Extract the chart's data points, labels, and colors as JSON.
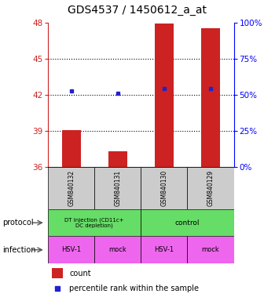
{
  "title": "GDS4537 / 1450612_a_at",
  "samples": [
    "GSM840132",
    "GSM840131",
    "GSM840130",
    "GSM840129"
  ],
  "count_values": [
    39.1,
    37.3,
    47.9,
    47.5
  ],
  "percentile_values": [
    42.3,
    42.1,
    42.5,
    42.5
  ],
  "ylim": [
    36,
    48
  ],
  "yticks_left": [
    36,
    39,
    42,
    45,
    48
  ],
  "yticks_right": [
    0,
    25,
    50,
    75,
    100
  ],
  "ytick_right_labels": [
    "0%",
    "25%",
    "50%",
    "75%",
    "100%"
  ],
  "bar_color": "#cc2222",
  "dot_color": "#2222cc",
  "protocol_labels": [
    "DT injection (CD11c+\nDC depletion)",
    "control"
  ],
  "protocol_color": "#66dd66",
  "infection_labels": [
    "HSV-1",
    "mock",
    "HSV-1",
    "mock"
  ],
  "infection_color": "#ee66ee",
  "sample_bg_color": "#cccccc",
  "title_fontsize": 10,
  "bar_width": 0.4,
  "legend_count_color": "#cc2222",
  "legend_dot_color": "#2222cc",
  "gridline_values": [
    39,
    42,
    45
  ],
  "spine_color": "black"
}
